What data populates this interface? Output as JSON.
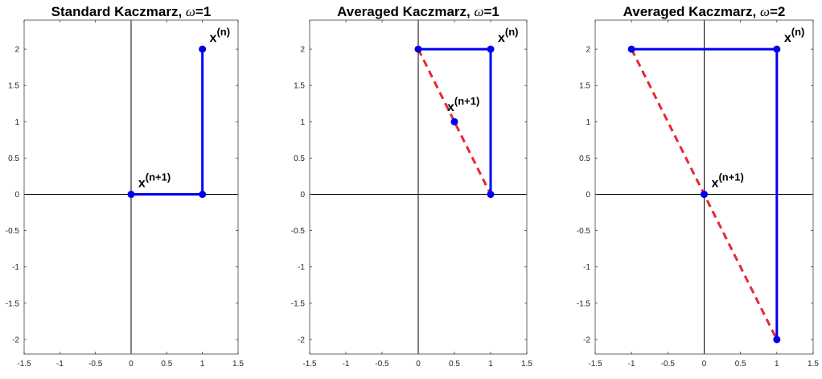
{
  "chart_data": [
    {
      "type": "line",
      "title": "Standard Kaczmarz, ",
      "title_omega": "ω",
      "title_suffix": "=1",
      "xlim": [
        -1.5,
        1.5
      ],
      "ylim": [
        -2.2,
        2.4
      ],
      "x_ticks": [
        -1.5,
        -1,
        -0.5,
        0,
        0.5,
        1,
        1.5
      ],
      "y_ticks": [
        -2,
        -1.5,
        -1,
        -0.5,
        0,
        0.5,
        1,
        1.5,
        2
      ],
      "x_tick_labels": [
        "-1.5",
        "-1",
        "-0.5",
        "0",
        "0.5",
        "1",
        "1.5"
      ],
      "y_tick_labels": [
        "-2",
        "-1.5",
        "-1",
        "-0.5",
        "0",
        "0.5",
        "1",
        "1.5",
        "2"
      ],
      "grid": false,
      "color": "#0000ee",
      "dashed_color": "#e8282b",
      "solid_path": [
        [
          1,
          2
        ],
        [
          1,
          0
        ],
        [
          0,
          0
        ]
      ],
      "dashed_path": [],
      "points": [
        [
          1,
          2
        ],
        [
          1,
          0
        ],
        [
          0,
          0
        ]
      ],
      "annotations": [
        {
          "base": "x",
          "sup": "(n)",
          "x": 1,
          "y": 2,
          "dx": 0.1,
          "dy": 0.1
        },
        {
          "base": "x",
          "sup": "(n+1)",
          "x": 0,
          "y": 0,
          "dx": 0.1,
          "dy": 0.1
        }
      ]
    },
    {
      "type": "line",
      "title": "Averaged Kaczmarz, ",
      "title_omega": "ω",
      "title_suffix": "=1",
      "xlim": [
        -1.5,
        1.5
      ],
      "ylim": [
        -2.2,
        2.4
      ],
      "x_ticks": [
        -1.5,
        -1,
        -0.5,
        0,
        0.5,
        1,
        1.5
      ],
      "y_ticks": [
        -2,
        -1.5,
        -1,
        -0.5,
        0,
        0.5,
        1,
        1.5,
        2
      ],
      "x_tick_labels": [
        "-1.5",
        "-1",
        "-0.5",
        "0",
        "0.5",
        "1",
        "1.5"
      ],
      "y_tick_labels": [
        "-2",
        "-1.5",
        "-1",
        "-0.5",
        "0",
        "0.5",
        "1",
        "1.5",
        "2"
      ],
      "grid": false,
      "color": "#0000ee",
      "dashed_color": "#e8282b",
      "solid_path": [
        [
          0,
          2
        ],
        [
          1,
          2
        ],
        [
          1,
          0
        ]
      ],
      "dashed_path": [
        [
          0,
          2
        ],
        [
          1,
          0
        ]
      ],
      "points": [
        [
          0,
          2
        ],
        [
          1,
          2
        ],
        [
          1,
          0
        ],
        [
          0.5,
          1
        ]
      ],
      "annotations": [
        {
          "base": "x",
          "sup": "(n)",
          "x": 1,
          "y": 2,
          "dx": 0.1,
          "dy": 0.1
        },
        {
          "base": "x",
          "sup": "(n+1)",
          "x": 0.5,
          "y": 1,
          "dx": -0.1,
          "dy": 0.15
        }
      ]
    },
    {
      "type": "line",
      "title": "Averaged Kaczmarz, ",
      "title_omega": "ω",
      "title_suffix": "=2",
      "xlim": [
        -1.5,
        1.5
      ],
      "ylim": [
        -2.2,
        2.4
      ],
      "x_ticks": [
        -1.5,
        -1,
        -0.5,
        0,
        0.5,
        1,
        1.5
      ],
      "y_ticks": [
        -2,
        -1.5,
        -1,
        -0.5,
        0,
        0.5,
        1,
        1.5,
        2
      ],
      "x_tick_labels": [
        "-1.5",
        "-1",
        "-0.5",
        "0",
        "0.5",
        "1",
        "1.5"
      ],
      "y_tick_labels": [
        "-2",
        "-1.5",
        "-1",
        "-0.5",
        "0",
        "0.5",
        "1",
        "1.5",
        "2"
      ],
      "grid": false,
      "color": "#0000ee",
      "dashed_color": "#e8282b",
      "solid_path": [
        [
          -1,
          2
        ],
        [
          1,
          2
        ],
        [
          1,
          -2
        ]
      ],
      "dashed_path": [
        [
          -1,
          2
        ],
        [
          1,
          -2
        ]
      ],
      "points": [
        [
          -1,
          2
        ],
        [
          1,
          2
        ],
        [
          1,
          -2
        ],
        [
          0,
          0
        ]
      ],
      "annotations": [
        {
          "base": "x",
          "sup": "(n)",
          "x": 1,
          "y": 2,
          "dx": 0.1,
          "dy": 0.1
        },
        {
          "base": "x",
          "sup": "(n+1)",
          "x": 0,
          "y": 0,
          "dx": 0.1,
          "dy": 0.1
        }
      ]
    }
  ]
}
